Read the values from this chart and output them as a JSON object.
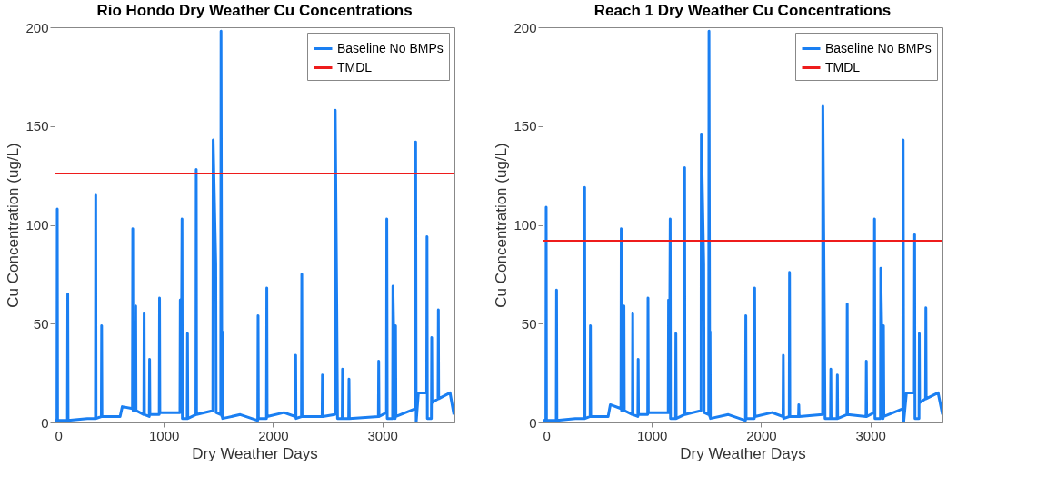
{
  "chart_data": [
    {
      "type": "line",
      "title": "Rio Hondo Dry Weather Cu Concentrations",
      "xlabel": "Dry Weather Days",
      "ylabel": "Cu Concentration (ug/L)",
      "xlim": [
        0,
        3660
      ],
      "xticks": [
        0,
        1000,
        2000,
        3000
      ],
      "ylim": [
        0,
        200
      ],
      "yticks": [
        0,
        50,
        100,
        150,
        200
      ],
      "grid": false,
      "legend": "top right",
      "series": [
        {
          "name": "Baseline No BMPs",
          "color": "#1a7ff2",
          "x": [
            0,
            22,
            25,
            28,
            118,
            121,
            124,
            300,
            374,
            377,
            380,
            428,
            431,
            434,
            600,
            620,
            713,
            716,
            719,
            740,
            743,
            746,
            817,
            820,
            823,
            867,
            870,
            873,
            958,
            961,
            964,
            1148,
            1151,
            1159,
            1167,
            1170,
            1214,
            1217,
            1220,
            1294,
            1297,
            1300,
            1449,
            1452,
            1476,
            1479,
            1521,
            1524,
            1532,
            1535,
            1538,
            1700,
            1860,
            1863,
            1866,
            1940,
            1943,
            1946,
            2100,
            2204,
            2207,
            2210,
            2260,
            2263,
            2266,
            2449,
            2452,
            2455,
            2566,
            2569,
            2583,
            2590,
            2633,
            2636,
            2640,
            2692,
            2695,
            2698,
            2964,
            2967,
            2970,
            3038,
            3041,
            3045,
            3094,
            3097,
            3118,
            3121,
            3125,
            3302,
            3305,
            3310,
            3330,
            3406,
            3409,
            3412,
            3449,
            3452,
            3455,
            3510,
            3513,
            3516,
            3620,
            3655
          ],
          "values": [
            1,
            1,
            108,
            1,
            1,
            65,
            1,
            2,
            2,
            115,
            2,
            3,
            49,
            3,
            3,
            8,
            7,
            98,
            6,
            6,
            59,
            6,
            4,
            55,
            4,
            3,
            32,
            4,
            4,
            63,
            5,
            5,
            62,
            8,
            103,
            2,
            2,
            45,
            2,
            4,
            128,
            4,
            6,
            143,
            80,
            5,
            4,
            198,
            3,
            46,
            2,
            4,
            1,
            54,
            2,
            2,
            68,
            3,
            5,
            3,
            34,
            2,
            3,
            75,
            3,
            3,
            24,
            3,
            4,
            158,
            60,
            2,
            2,
            27,
            2,
            2,
            22,
            2,
            3,
            31,
            3,
            5,
            103,
            2,
            2,
            69,
            2,
            49,
            3,
            7,
            142,
            0,
            15,
            15,
            94,
            2,
            2,
            43,
            10,
            12,
            57,
            12,
            15,
            4
          ]
        }
      ],
      "ref_lines": [
        {
          "axis": "y",
          "value": 126,
          "label": "TMDL",
          "color": "#ee1c1c"
        }
      ]
    },
    {
      "type": "line",
      "title": "Reach 1 Dry Weather Cu Concentrations",
      "xlabel": "Dry Weather Days",
      "ylabel": "Cu Concentration (ug/L)",
      "xlim": [
        0,
        3660
      ],
      "xticks": [
        0,
        1000,
        2000,
        3000
      ],
      "ylim": [
        0,
        200
      ],
      "yticks": [
        0,
        50,
        100,
        150,
        200
      ],
      "grid": false,
      "legend": "top right",
      "series": [
        {
          "name": "Baseline No BMPs",
          "color": "#1a7ff2",
          "x": [
            0,
            30,
            33,
            36,
            125,
            128,
            131,
            300,
            382,
            385,
            388,
            435,
            438,
            441,
            600,
            620,
            717,
            720,
            723,
            742,
            745,
            748,
            822,
            825,
            828,
            872,
            875,
            878,
            962,
            965,
            968,
            1150,
            1153,
            1160,
            1168,
            1171,
            1217,
            1220,
            1223,
            1297,
            1300,
            1303,
            1450,
            1453,
            1475,
            1478,
            1520,
            1523,
            1530,
            1533,
            1536,
            1700,
            1857,
            1860,
            1863,
            1938,
            1941,
            1944,
            2100,
            2200,
            2203,
            2206,
            2257,
            2260,
            2263,
            2342,
            2345,
            2348,
            2562,
            2565,
            2578,
            2585,
            2635,
            2638,
            2641,
            2695,
            2698,
            2701,
            2785,
            2788,
            2791,
            2960,
            2963,
            2966,
            3035,
            3038,
            3042,
            3092,
            3095,
            3117,
            3120,
            3124,
            3297,
            3300,
            3305,
            3330,
            3402,
            3405,
            3408,
            3445,
            3448,
            3451,
            3505,
            3508,
            3511,
            3620,
            3660
          ],
          "values": [
            1,
            1,
            109,
            1,
            1,
            67,
            1,
            2,
            2,
            119,
            2,
            3,
            49,
            3,
            3,
            9,
            7,
            98,
            6,
            6,
            59,
            6,
            4,
            55,
            4,
            3,
            32,
            4,
            4,
            63,
            5,
            5,
            62,
            8,
            103,
            2,
            2,
            45,
            2,
            4,
            129,
            4,
            6,
            146,
            80,
            5,
            4,
            198,
            3,
            46,
            2,
            4,
            1,
            54,
            2,
            2,
            68,
            3,
            5,
            3,
            34,
            2,
            3,
            76,
            3,
            3,
            9,
            3,
            4,
            160,
            60,
            2,
            2,
            27,
            2,
            2,
            24,
            2,
            4,
            60,
            4,
            3,
            31,
            3,
            5,
            103,
            2,
            2,
            78,
            2,
            49,
            3,
            7,
            143,
            0,
            15,
            15,
            95,
            2,
            2,
            45,
            10,
            12,
            58,
            12,
            15,
            4
          ]
        }
      ],
      "ref_lines": [
        {
          "axis": "y",
          "value": 92,
          "label": "TMDL",
          "color": "#ee1c1c"
        }
      ]
    }
  ]
}
